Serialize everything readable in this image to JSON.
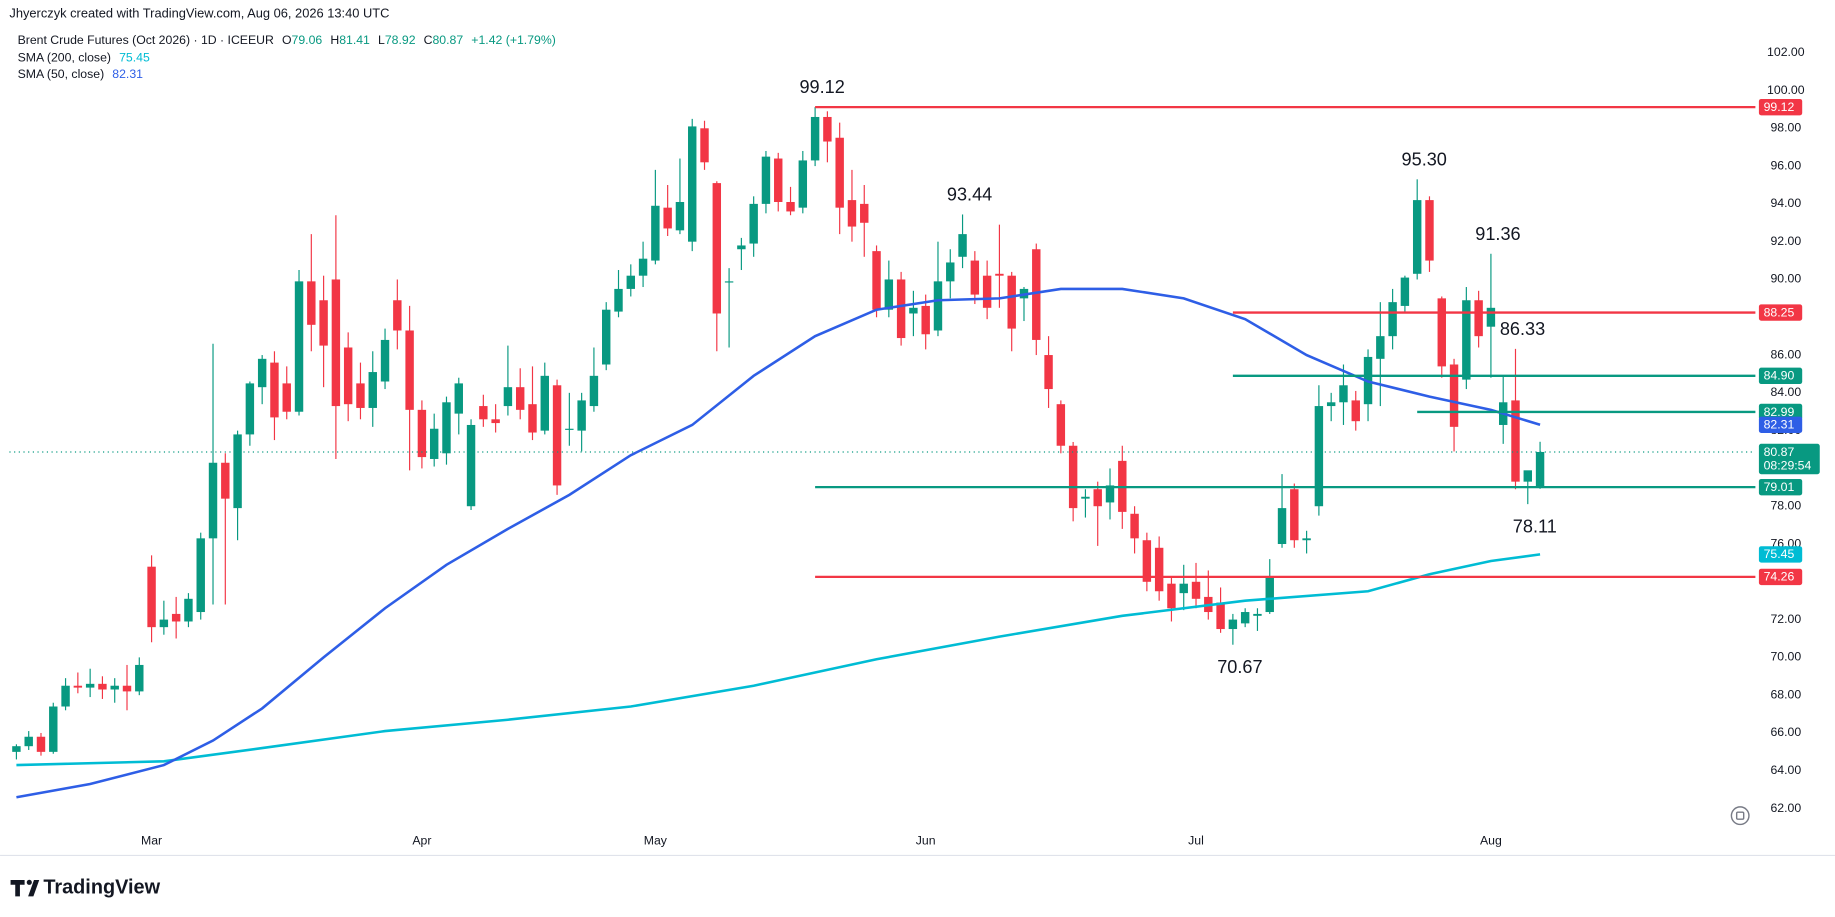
{
  "chart_data": {
    "type": "candlestick",
    "credit": "Jhyerczyk created with TradingView.com, Aug 06, 2026 13:40 UTC",
    "title": "Brent Crude Futures (Oct 2026) · 1D · ICEEUR",
    "ohlc_labels": [
      "O",
      "H",
      "L",
      "C"
    ],
    "change": "+1.42 (+1.79%)",
    "countdown": "08:29:54",
    "logo": "TradingView",
    "up_color": "#089981",
    "down_color": "#f23645",
    "ylim": [
      59.58,
      104.79
    ],
    "yticks": [
      {
        "value": 62,
        "label": "62.00"
      },
      {
        "value": 64,
        "label": "64.00"
      },
      {
        "value": 66,
        "label": "66.00"
      },
      {
        "value": 68,
        "label": "68.00"
      },
      {
        "value": 70,
        "label": "70.00"
      },
      {
        "value": 72,
        "label": "72.00"
      },
      {
        "value": 74,
        "label": "74.00"
      },
      {
        "value": 76,
        "label": "76.00"
      },
      {
        "value": 78,
        "label": "78.00"
      },
      {
        "value": 80,
        "label": "80.00"
      },
      {
        "value": 82,
        "label": "82.00"
      },
      {
        "value": 84,
        "label": "84.00"
      },
      {
        "value": 86,
        "label": "86.00"
      },
      {
        "value": 88,
        "label": "88.00"
      },
      {
        "value": 90,
        "label": "90.00"
      },
      {
        "value": 92,
        "label": "92.00"
      },
      {
        "value": 94,
        "label": "94.00"
      },
      {
        "value": 96,
        "label": "96.00"
      },
      {
        "value": 98,
        "label": "98.00"
      },
      {
        "value": 100,
        "label": "100.00"
      },
      {
        "value": 102,
        "label": "102.00"
      }
    ],
    "categories": [
      null,
      null,
      null,
      null,
      null,
      null,
      null,
      null,
      null,
      null,
      null,
      "Mar",
      null,
      null,
      null,
      null,
      null,
      null,
      null,
      null,
      null,
      null,
      null,
      null,
      null,
      null,
      null,
      null,
      null,
      null,
      null,
      null,
      null,
      "Apr",
      null,
      null,
      null,
      null,
      null,
      null,
      null,
      null,
      null,
      null,
      null,
      null,
      null,
      null,
      null,
      null,
      null,
      null,
      "May",
      null,
      null,
      null,
      null,
      null,
      null,
      null,
      null,
      null,
      null,
      null,
      null,
      null,
      null,
      null,
      null,
      null,
      null,
      null,
      null,
      null,
      "Jun",
      null,
      null,
      null,
      null,
      null,
      null,
      null,
      null,
      null,
      null,
      null,
      null,
      null,
      null,
      null,
      null,
      null,
      null,
      null,
      null,
      null,
      "Jul",
      null,
      null,
      null,
      null,
      null,
      null,
      null,
      null,
      null,
      null,
      null,
      null,
      null,
      null,
      null,
      null,
      null,
      null,
      null,
      null,
      null,
      null,
      null,
      "Aug",
      null,
      null,
      null
    ],
    "candles": [
      [
        65.0,
        65.4,
        64.6,
        65.3
      ],
      [
        65.3,
        66.1,
        65.1,
        65.8
      ],
      [
        65.8,
        66.0,
        64.8,
        65.0
      ],
      [
        65.0,
        67.6,
        64.9,
        67.4
      ],
      [
        67.4,
        68.9,
        67.2,
        68.5
      ],
      [
        68.5,
        69.2,
        68.1,
        68.4
      ],
      [
        68.4,
        69.4,
        67.9,
        68.6
      ],
      [
        68.6,
        69.0,
        67.8,
        68.3
      ],
      [
        68.3,
        68.9,
        67.6,
        68.5
      ],
      [
        68.5,
        69.6,
        67.2,
        68.2
      ],
      [
        68.2,
        70.0,
        68.0,
        69.6
      ],
      [
        74.8,
        75.4,
        70.8,
        71.6
      ],
      [
        71.6,
        73.0,
        71.2,
        72.0
      ],
      [
        72.3,
        73.2,
        71.0,
        71.9
      ],
      [
        71.9,
        73.4,
        71.6,
        73.1
      ],
      [
        72.4,
        76.6,
        72.0,
        76.3
      ],
      [
        76.3,
        86.6,
        72.8,
        80.3
      ],
      [
        80.3,
        80.8,
        72.8,
        78.4
      ],
      [
        77.9,
        82.0,
        76.2,
        81.8
      ],
      [
        81.8,
        84.6,
        81.2,
        84.5
      ],
      [
        84.3,
        86.0,
        83.4,
        85.8
      ],
      [
        85.6,
        86.2,
        81.5,
        82.7
      ],
      [
        84.5,
        85.4,
        82.6,
        83.0
      ],
      [
        83.0,
        90.5,
        82.8,
        89.9
      ],
      [
        89.9,
        92.4,
        86.2,
        87.6
      ],
      [
        88.9,
        90.2,
        84.3,
        86.5
      ],
      [
        90.0,
        93.4,
        80.5,
        83.3
      ],
      [
        86.4,
        87.2,
        82.5,
        83.4
      ],
      [
        84.5,
        85.6,
        82.6,
        83.2
      ],
      [
        83.2,
        86.2,
        82.2,
        85.1
      ],
      [
        84.6,
        87.4,
        84.2,
        86.8
      ],
      [
        88.9,
        90.0,
        86.3,
        87.3
      ],
      [
        87.3,
        88.6,
        79.9,
        83.1
      ],
      [
        83.1,
        83.6,
        80.0,
        80.6
      ],
      [
        80.5,
        82.9,
        80.1,
        82.1
      ],
      [
        80.8,
        83.8,
        80.2,
        83.5
      ],
      [
        82.9,
        84.8,
        81.8,
        84.5
      ],
      [
        78.0,
        82.6,
        77.8,
        82.3
      ],
      [
        83.3,
        83.9,
        82.2,
        82.6
      ],
      [
        82.6,
        83.4,
        81.9,
        82.4
      ],
      [
        83.3,
        86.5,
        82.8,
        84.3
      ],
      [
        84.3,
        85.3,
        82.6,
        83.1
      ],
      [
        83.4,
        85.4,
        81.5,
        81.9
      ],
      [
        82.0,
        85.6,
        81.8,
        84.9
      ],
      [
        84.4,
        84.7,
        78.6,
        79.1
      ],
      [
        82.1,
        84.0,
        81.2,
        82.1
      ],
      [
        82.0,
        84.0,
        80.9,
        83.6
      ],
      [
        83.3,
        86.4,
        83.0,
        84.9
      ],
      [
        85.5,
        88.8,
        85.2,
        88.4
      ],
      [
        88.3,
        90.5,
        88.0,
        89.5
      ],
      [
        89.5,
        90.8,
        89.1,
        90.2
      ],
      [
        90.2,
        92.0,
        89.6,
        91.1
      ],
      [
        91.0,
        95.8,
        90.8,
        93.9
      ],
      [
        93.8,
        95.0,
        92.3,
        92.7
      ],
      [
        92.6,
        96.4,
        92.4,
        94.1
      ],
      [
        92.0,
        98.5,
        91.5,
        98.1
      ],
      [
        98.0,
        98.4,
        95.8,
        96.2
      ],
      [
        95.1,
        95.2,
        86.2,
        88.2
      ],
      [
        89.9,
        90.6,
        86.4,
        89.9
      ],
      [
        91.6,
        92.2,
        90.5,
        91.8
      ],
      [
        91.9,
        94.4,
        91.2,
        94.0
      ],
      [
        94.0,
        96.8,
        93.5,
        96.5
      ],
      [
        96.4,
        96.7,
        93.6,
        94.1
      ],
      [
        94.1,
        94.9,
        93.4,
        93.6
      ],
      [
        93.8,
        96.8,
        93.5,
        96.3
      ],
      [
        96.3,
        99.12,
        96.0,
        98.6
      ],
      [
        98.6,
        98.9,
        96.2,
        97.3
      ],
      [
        97.5,
        98.3,
        92.4,
        93.8
      ],
      [
        94.2,
        95.8,
        92.0,
        92.8
      ],
      [
        94.0,
        95.0,
        91.2,
        93.0
      ],
      [
        91.5,
        91.8,
        88.0,
        88.4
      ],
      [
        88.4,
        91.0,
        88.0,
        90.0
      ],
      [
        90.0,
        90.4,
        86.5,
        86.9
      ],
      [
        88.2,
        89.4,
        87.0,
        88.5
      ],
      [
        88.6,
        89.2,
        86.3,
        87.1
      ],
      [
        87.3,
        92.0,
        87.0,
        89.9
      ],
      [
        89.9,
        91.6,
        89.0,
        90.9
      ],
      [
        91.2,
        93.44,
        90.6,
        92.4
      ],
      [
        91.0,
        91.5,
        88.7,
        89.2
      ],
      [
        90.2,
        91.0,
        87.9,
        88.5
      ],
      [
        90.3,
        92.9,
        88.5,
        90.2
      ],
      [
        90.2,
        90.4,
        86.2,
        87.4
      ],
      [
        89.0,
        89.6,
        87.8,
        89.5
      ],
      [
        91.6,
        91.9,
        86.0,
        86.8
      ],
      [
        86.0,
        87.0,
        83.2,
        84.2
      ],
      [
        83.4,
        83.6,
        80.8,
        81.2
      ],
      [
        81.2,
        81.4,
        77.2,
        77.9
      ],
      [
        78.4,
        78.9,
        77.4,
        78.5
      ],
      [
        78.9,
        79.3,
        75.9,
        78.0
      ],
      [
        78.2,
        80.0,
        77.3,
        79.1
      ],
      [
        80.4,
        81.2,
        76.8,
        77.7
      ],
      [
        77.6,
        78.0,
        75.5,
        76.3
      ],
      [
        76.2,
        76.6,
        73.5,
        74.0
      ],
      [
        75.8,
        76.4,
        73.0,
        73.5
      ],
      [
        73.9,
        74.2,
        71.9,
        72.6
      ],
      [
        73.4,
        74.9,
        72.5,
        73.9
      ],
      [
        74.0,
        75.0,
        72.6,
        73.1
      ],
      [
        73.2,
        74.6,
        72.0,
        72.4
      ],
      [
        72.9,
        73.7,
        71.3,
        71.5
      ],
      [
        71.5,
        72.3,
        70.67,
        72.0
      ],
      [
        71.8,
        72.6,
        71.6,
        72.4
      ],
      [
        72.2,
        72.6,
        71.4,
        72.3
      ],
      [
        72.4,
        75.2,
        72.3,
        74.3
      ],
      [
        76.0,
        79.7,
        75.8,
        77.9
      ],
      [
        78.9,
        79.2,
        75.8,
        76.2
      ],
      [
        76.2,
        76.7,
        75.5,
        76.3
      ],
      [
        78.0,
        84.4,
        77.5,
        83.3
      ],
      [
        83.3,
        84.0,
        82.5,
        83.5
      ],
      [
        83.5,
        85.5,
        82.3,
        84.4
      ],
      [
        83.6,
        84.1,
        82.0,
        82.5
      ],
      [
        83.4,
        86.3,
        82.5,
        85.9
      ],
      [
        85.8,
        88.8,
        83.3,
        87.0
      ],
      [
        87.0,
        89.5,
        86.3,
        88.8
      ],
      [
        88.6,
        90.2,
        88.2,
        90.1
      ],
      [
        90.3,
        95.3,
        90.0,
        94.2
      ],
      [
        94.2,
        94.4,
        90.4,
        91.0
      ],
      [
        89.0,
        89.1,
        84.8,
        85.4
      ],
      [
        85.5,
        85.8,
        80.9,
        82.2
      ],
      [
        84.7,
        89.6,
        84.2,
        88.9
      ],
      [
        88.9,
        89.4,
        86.4,
        87.0
      ],
      [
        87.5,
        91.36,
        84.8,
        88.5
      ],
      [
        82.3,
        84.9,
        81.3,
        83.5
      ],
      [
        83.6,
        86.33,
        78.9,
        79.3
      ],
      [
        79.3,
        79.8,
        78.11,
        79.9
      ],
      [
        79.06,
        81.41,
        78.92,
        80.87
      ]
    ],
    "series": [
      {
        "name": "SMA (200, close)",
        "color": "#00bcd4",
        "x": [
          0,
          12,
          20,
          30,
          40,
          50,
          60,
          70,
          80,
          90,
          100,
          110,
          115,
          120,
          124
        ],
        "values": [
          64.3,
          64.5,
          65.2,
          66.1,
          66.7,
          67.4,
          68.5,
          69.9,
          71.1,
          72.2,
          73.0,
          73.5,
          74.4,
          75.1,
          75.45
        ]
      },
      {
        "name": "SMA (50, close)",
        "color": "#2e5ee6",
        "x": [
          0,
          6,
          12,
          16,
          20,
          25,
          30,
          35,
          40,
          45,
          50,
          55,
          60,
          65,
          70,
          75,
          80,
          85,
          90,
          95,
          100,
          105,
          110,
          115,
          120,
          124
        ],
        "values": [
          62.6,
          63.3,
          64.3,
          65.6,
          67.3,
          70.0,
          72.6,
          74.9,
          76.8,
          78.6,
          80.7,
          82.3,
          84.9,
          87.0,
          88.4,
          88.9,
          89.0,
          89.5,
          89.5,
          89.0,
          87.9,
          86.0,
          84.6,
          83.8,
          83.1,
          82.31
        ]
      }
    ],
    "levels": [
      {
        "value": 99.12,
        "color": "#f23645"
      },
      {
        "value": 88.25,
        "color": "#f23645"
      },
      {
        "value": 84.9,
        "label": "84.90",
        "color": "#089981"
      },
      {
        "value": 82.99,
        "color": "#089981"
      },
      {
        "value": 79.01,
        "color": "#089981"
      },
      {
        "value": 74.26,
        "color": "#f23645"
      }
    ],
    "annotations": [
      99.12,
      93.44,
      {
        "value": 95.3,
        "label": "95.30"
      },
      91.36,
      86.33,
      78.11,
      70.67
    ]
  }
}
